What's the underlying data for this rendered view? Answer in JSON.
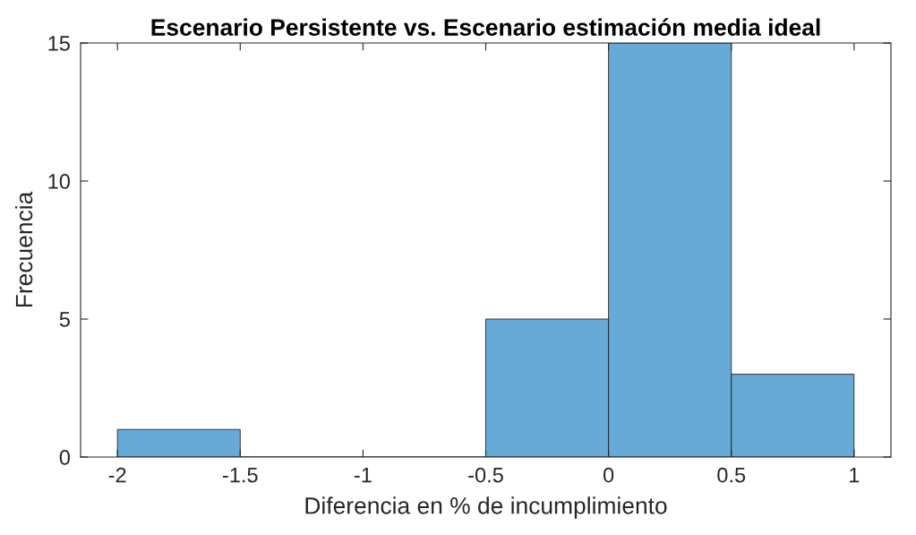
{
  "chart_data": {
    "type": "histogram",
    "title": "Escenario Persistente vs. Escenario estimación media ideal",
    "xlabel": "Diferencia en % de incumplimiento",
    "ylabel": "Frecuencia",
    "bins": [
      -2,
      -1.5,
      -1,
      -0.5,
      0,
      0.5,
      1
    ],
    "values": [
      1,
      0,
      0,
      5,
      15,
      3
    ],
    "color": "#66aad7",
    "xlim": [
      -2.15,
      1.15
    ],
    "xticks": [
      -2,
      -1.5,
      -1,
      -0.5,
      0,
      0.5,
      1
    ],
    "ylim": [
      0,
      15
    ],
    "yticks": [
      0,
      5,
      10,
      15
    ],
    "grid": false
  }
}
